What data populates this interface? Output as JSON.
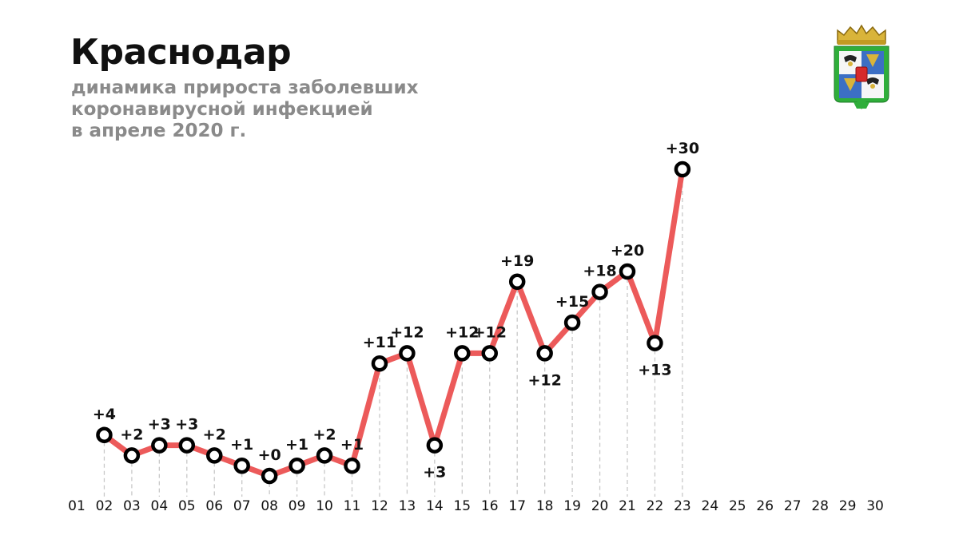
{
  "header": {
    "title": "Краснодар",
    "subtitle_lines": [
      "динамика прироста заболевших",
      "коронавирусной инфекцией",
      "в апреле 2020 г."
    ]
  },
  "emblem_icon": "krasnodar-coat-of-arms-icon",
  "colors": {
    "line": "#ec5a5a",
    "marker_stroke": "#000000",
    "marker_fill": "#ffffff",
    "subtitle": "#8a8a8a",
    "gridline": "#c8c8c8"
  },
  "chart_data": {
    "type": "line",
    "title": "динамика прироста заболевших коронавирусной инфекцией в апреле 2020 г.",
    "xlabel": "",
    "ylabel": "",
    "x_ticks": [
      "01",
      "02",
      "03",
      "04",
      "05",
      "06",
      "07",
      "08",
      "09",
      "10",
      "11",
      "12",
      "13",
      "14",
      "15",
      "16",
      "17",
      "18",
      "19",
      "20",
      "21",
      "22",
      "23",
      "24",
      "25",
      "26",
      "27",
      "28",
      "29",
      "30"
    ],
    "series": [
      {
        "name": "прирост заболевших",
        "x": [
          "02",
          "03",
          "04",
          "05",
          "06",
          "07",
          "08",
          "09",
          "10",
          "11",
          "12",
          "13",
          "14",
          "15",
          "16",
          "17",
          "18",
          "19",
          "20",
          "21",
          "22",
          "23"
        ],
        "values": [
          4,
          2,
          3,
          3,
          2,
          1,
          0,
          1,
          2,
          1,
          11,
          12,
          3,
          12,
          12,
          19,
          12,
          15,
          18,
          20,
          13,
          30
        ],
        "labels": [
          "+4",
          "+2",
          "+3",
          "+3",
          "+2",
          "+1",
          "+0",
          "+1",
          "+2",
          "+1",
          "+11",
          "+12",
          "+3",
          "+12",
          "+12",
          "+19",
          "+12",
          "+15",
          "+18",
          "+20",
          "+13",
          "+30"
        ],
        "label_position": [
          "above",
          "above",
          "above",
          "above",
          "above",
          "above",
          "above",
          "above",
          "above",
          "above",
          "above",
          "above",
          "below",
          "above",
          "above",
          "above",
          "below",
          "above",
          "above",
          "above",
          "below",
          "above"
        ]
      }
    ],
    "ylim": [
      0,
      30
    ],
    "grid": "vertical-dashed-drop-lines"
  }
}
